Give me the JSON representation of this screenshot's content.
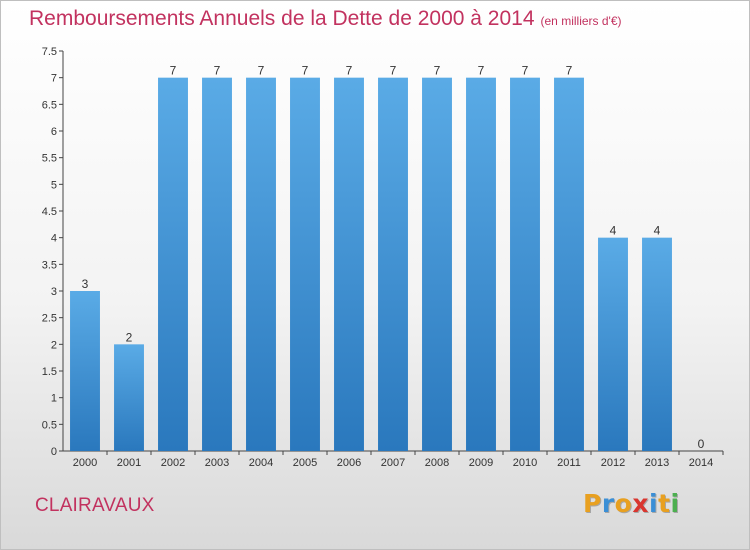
{
  "title": "Remboursements Annuels de la Dette de 2000 à 2014",
  "subtitle": "(en milliers d'€)",
  "place": "CLAIRAVAUX",
  "logo": {
    "text": "Proxiti",
    "letters": [
      {
        "ch": "P",
        "color": "#e8a020"
      },
      {
        "ch": "r",
        "color": "#3b8fd6"
      },
      {
        "ch": "o",
        "color": "#e8a020"
      },
      {
        "ch": "x",
        "color": "#d9362f"
      },
      {
        "ch": "i",
        "color": "#3b8fd6"
      },
      {
        "ch": "t",
        "color": "#e8a020"
      },
      {
        "ch": "i",
        "color": "#4caf50"
      }
    ]
  },
  "chart_data": {
    "type": "bar",
    "categories": [
      "2000",
      "2001",
      "2002",
      "2003",
      "2004",
      "2005",
      "2006",
      "2007",
      "2008",
      "2009",
      "2010",
      "2011",
      "2012",
      "2013",
      "2014"
    ],
    "values": [
      3,
      2,
      7,
      7,
      7,
      7,
      7,
      7,
      7,
      7,
      7,
      7,
      4,
      4,
      0
    ],
    "data_labels": [
      "3",
      "2",
      "7",
      "7",
      "7",
      "7",
      "7",
      "7",
      "7",
      "7",
      "7",
      "7",
      "4",
      "4",
      "0"
    ],
    "ylim": [
      0,
      7.5
    ],
    "yticks": [
      0,
      0.5,
      1,
      1.5,
      2,
      2.5,
      3,
      3.5,
      4,
      4.5,
      5,
      5.5,
      6,
      6.5,
      7,
      7.5
    ],
    "ytick_labels": [
      "0",
      "0.5",
      "1",
      "1.5",
      "2",
      "2.5",
      "3",
      "3.5",
      "4",
      "4.5",
      "5",
      "5.5",
      "6",
      "6.5",
      "7",
      "7.5"
    ],
    "grid": false,
    "bar_color_top": "#5aabe6",
    "bar_color_bottom": "#2a78bd"
  }
}
